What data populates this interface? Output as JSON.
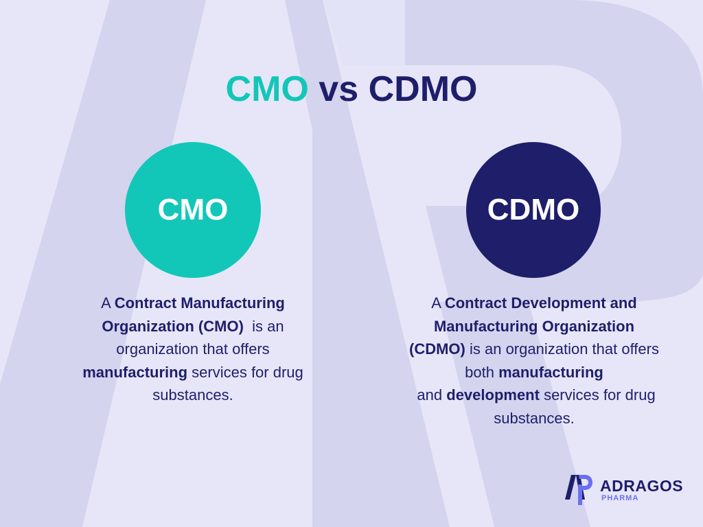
{
  "title": {
    "part1": "CMO",
    "part2": " vs ",
    "part3": "CDMO"
  },
  "colors": {
    "teal": "#12c7b8",
    "navy": "#1f1e6b",
    "background": "#e6e6f8",
    "watermark": "#d3d3ef",
    "logo_accent": "#6b6ff0"
  },
  "cmo": {
    "circle_label": "CMO",
    "desc": {
      "p1": "A ",
      "b1": "Contract Manufacturing Organization (CMO)",
      "p2": "  is an organization that offers ",
      "b2": "manufacturing",
      "p3": " services for drug substances."
    }
  },
  "cdmo": {
    "circle_label": "CDMO",
    "desc": {
      "p1": "A ",
      "b1": "Contract Development and Manufacturing Organization (CDMO)",
      "p2": " is an organization that offers both ",
      "b2": "manufacturing",
      "p3": " and ",
      "b3": "development",
      "p4": " services for drug substances."
    }
  },
  "logo": {
    "name": "ADRAGOS",
    "sub": "PHARMA",
    "icon": "adragos-ap-logo-icon"
  },
  "watermark": {
    "icon": "ap-watermark-icon"
  }
}
